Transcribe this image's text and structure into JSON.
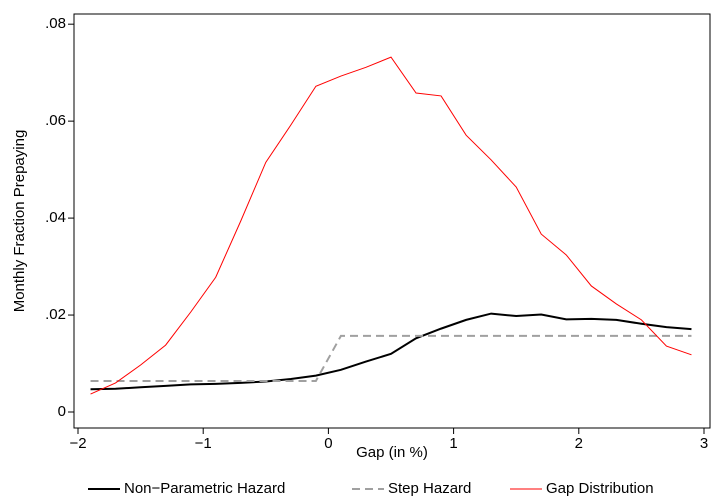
{
  "chart_data": {
    "type": "line",
    "xlabel": "Gap (in %)",
    "ylabel": "Monthly Fraction Prepaying",
    "x": [
      -1.9,
      -1.7,
      -1.5,
      -1.3,
      -1.1,
      -0.9,
      -0.7,
      -0.5,
      -0.3,
      -0.1,
      0.1,
      0.3,
      0.5,
      0.7,
      0.9,
      1.1,
      1.3,
      1.5,
      1.7,
      1.9,
      2.1,
      2.3,
      2.5,
      2.7,
      2.9
    ],
    "series": [
      {
        "name": "Non−Parametric Hazard",
        "color": "#000000",
        "dash": "solid",
        "values": [
          0.0047,
          0.0048,
          0.0051,
          0.0054,
          0.0057,
          0.0058,
          0.006,
          0.0063,
          0.0068,
          0.0075,
          0.0087,
          0.0104,
          0.012,
          0.0152,
          0.0172,
          0.019,
          0.0203,
          0.0198,
          0.0201,
          0.0191,
          0.0192,
          0.019,
          0.0182,
          0.0175,
          0.0171
        ]
      },
      {
        "name": "Step Hazard",
        "color": "#a0a0a0",
        "dash": "dashed",
        "x": [
          -1.9,
          -0.1,
          0.1,
          2.9
        ],
        "values": [
          0.0064,
          0.0064,
          0.0157,
          0.0157
        ]
      },
      {
        "name": "Gap Distribution",
        "color": "#ff0000",
        "dash": "solid",
        "values": [
          0.0037,
          0.006,
          0.0097,
          0.0138,
          0.0206,
          0.0278,
          0.0394,
          0.0515,
          0.0592,
          0.0672,
          0.0693,
          0.0711,
          0.0732,
          0.0658,
          0.0652,
          0.0571,
          0.052,
          0.0464,
          0.0367,
          0.0324,
          0.026,
          0.0223,
          0.019,
          0.0136,
          0.0118
        ]
      }
    ],
    "xlim": [
      -2.032,
      3.048
    ],
    "ylim": [
      -0.0033,
      0.0821
    ],
    "xticks": [
      {
        "value": -2,
        "label": "−2"
      },
      {
        "value": -1,
        "label": "−1"
      },
      0,
      1,
      2,
      3
    ],
    "yticks": [
      0,
      {
        "value": 0.02,
        "label": ".02"
      },
      {
        "value": 0.04,
        "label": ".04"
      },
      {
        "value": 0.06,
        "label": ".06"
      },
      {
        "value": 0.08,
        "label": ".08"
      }
    ],
    "legend": "bottom"
  }
}
